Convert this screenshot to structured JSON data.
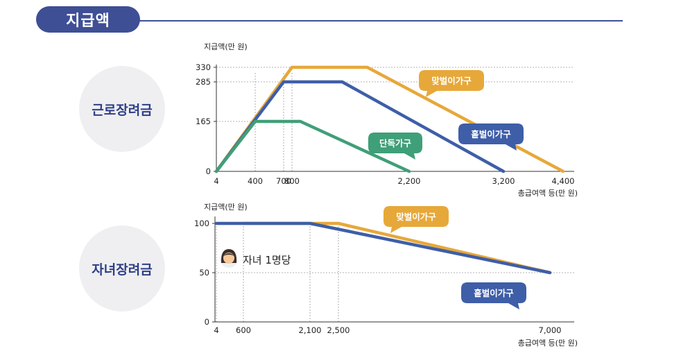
{
  "header": {
    "title": "지급액"
  },
  "panels": [
    {
      "label": "근로장려금"
    },
    {
      "label": "자녀장려금"
    }
  ],
  "colors": {
    "gold": "#e7a83a",
    "blue": "#3e5ea8",
    "green": "#3f9f78",
    "navy": "#3e4f95"
  },
  "chart_data": [
    {
      "type": "line",
      "ylabel": "지급액(만 원)",
      "xlabel": "총급여액 등(만 원)",
      "x_ticks": [
        4,
        400,
        700,
        800,
        2200,
        3200,
        4400
      ],
      "x_tick_labels": [
        "4",
        "400",
        "700",
        "800",
        "2,200",
        "3,200",
        "4,400"
      ],
      "y_ticks": [
        0,
        165,
        285,
        330
      ],
      "y_tick_labels": [
        "0",
        "165",
        "285",
        "330"
      ],
      "series": [
        {
          "name": "맞벌이가구",
          "color": "gold",
          "x": [
            4,
            800,
            1700,
            4400
          ],
          "y": [
            0,
            330,
            330,
            0
          ]
        },
        {
          "name": "홑벌이가구",
          "color": "blue",
          "x": [
            4,
            700,
            1400,
            3200
          ],
          "y": [
            0,
            285,
            285,
            0
          ]
        },
        {
          "name": "단독가구",
          "color": "green",
          "x": [
            4,
            400,
            900,
            2200
          ],
          "y": [
            0,
            165,
            165,
            0
          ]
        }
      ]
    },
    {
      "type": "line",
      "ylabel": "지급액(만 원)",
      "xlabel": "총급여액 등(만 원)",
      "annotation": "자녀 1명당",
      "x_ticks": [
        4,
        600,
        2100,
        2500,
        7000
      ],
      "x_tick_labels": [
        "4",
        "600",
        "2,100",
        "2,500",
        "7,000"
      ],
      "y_ticks": [
        0,
        50,
        100
      ],
      "y_tick_labels": [
        "0",
        "50",
        "100"
      ],
      "series": [
        {
          "name": "맞벌이가구",
          "color": "gold",
          "x": [
            600,
            2500,
            7000
          ],
          "y": [
            100,
            100,
            50
          ]
        },
        {
          "name": "홑벌이가구",
          "color": "blue",
          "x": [
            4,
            2100,
            7000
          ],
          "y": [
            100,
            100,
            50
          ]
        }
      ]
    }
  ]
}
